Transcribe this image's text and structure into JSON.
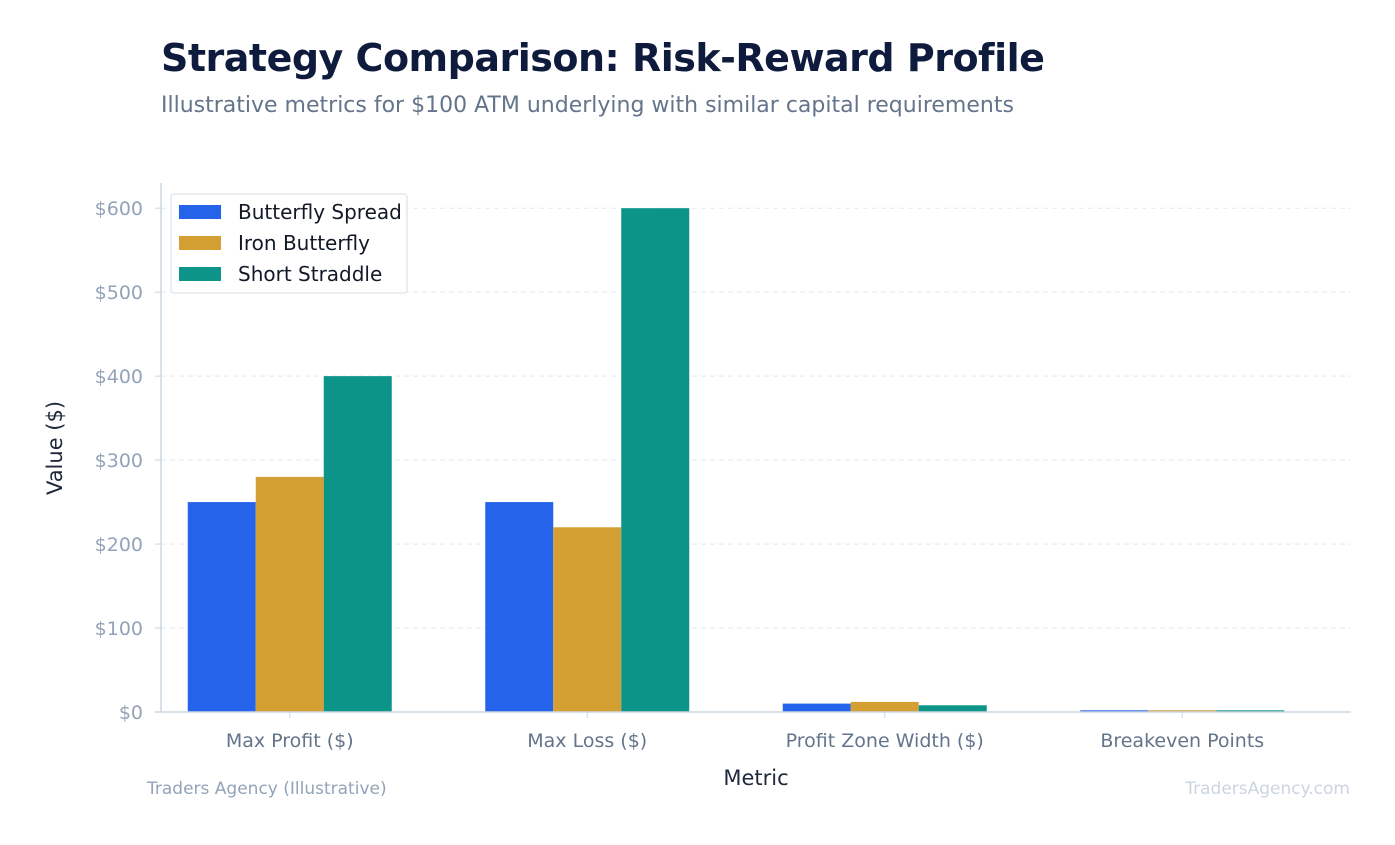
{
  "header": {
    "title": "Strategy Comparison: Risk-Reward Profile",
    "subtitle": "Illustrative metrics for $100 ATM underlying with similar capital requirements"
  },
  "footer": {
    "source": "Traders Agency (Illustrative)",
    "watermark": "TradersAgency.com"
  },
  "chart_data": {
    "type": "bar",
    "title": "Strategy Comparison: Risk-Reward Profile",
    "subtitle": "Illustrative metrics for $100 ATM underlying with similar capital requirements",
    "xlabel": "Metric",
    "ylabel": "Value ($)",
    "ylim": [
      0,
      630
    ],
    "yticks": [
      0,
      100,
      200,
      300,
      400,
      500,
      600
    ],
    "ytick_labels": [
      "$0",
      "$100",
      "$200",
      "$300",
      "$400",
      "$500",
      "$600"
    ],
    "grid": true,
    "legend_position": "top-left",
    "categories": [
      "Max Profit ($)",
      "Max Loss ($)",
      "Profit Zone Width ($)",
      "Breakeven Points"
    ],
    "series": [
      {
        "name": "Butterfly Spread",
        "color": "#2563eb",
        "values": [
          250,
          250,
          10,
          2
        ]
      },
      {
        "name": "Iron Butterfly",
        "color": "#d4a033",
        "values": [
          280,
          220,
          12,
          2
        ]
      },
      {
        "name": "Short Straddle",
        "color": "#0d9488",
        "values": [
          400,
          600,
          8,
          2
        ]
      }
    ]
  }
}
